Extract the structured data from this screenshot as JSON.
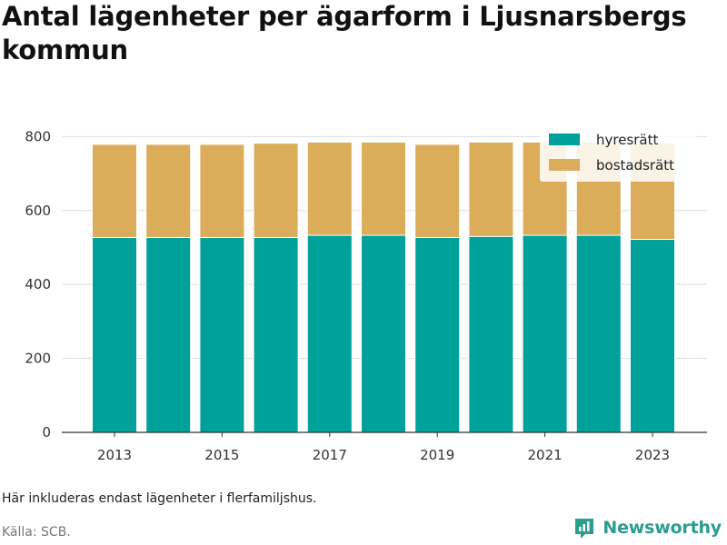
{
  "title": "Antal lägenheter per ägarform i Ljusnarsbergs kommun",
  "note": "Här inkluderas endast lägenheter i flerfamiljshus.",
  "source": "Källa: SCB.",
  "brand": {
    "name": "Newsworthy",
    "icon": "newsworthy-logo-icon",
    "color": "#2a9d8f"
  },
  "chart_data": {
    "type": "bar",
    "stacked": true,
    "categories": [
      2013,
      2014,
      2015,
      2016,
      2017,
      2018,
      2019,
      2020,
      2021,
      2022,
      2023
    ],
    "series": [
      {
        "name": "hyresrätt",
        "color": "#00a19a",
        "values": [
          527,
          527,
          527,
          527,
          533,
          533,
          527,
          530,
          533,
          533,
          522
        ]
      },
      {
        "name": "bostadsrätt",
        "color": "#dbac5a",
        "values": [
          252,
          252,
          252,
          255,
          252,
          252,
          252,
          255,
          252,
          252,
          260
        ]
      }
    ],
    "x_tick_labels": [
      "2013",
      "2015",
      "2017",
      "2019",
      "2021",
      "2023"
    ],
    "y_ticks": [
      0,
      200,
      400,
      600,
      800
    ],
    "ylim": [
      0,
      850
    ],
    "grid": true,
    "legend_position": "top-right"
  }
}
